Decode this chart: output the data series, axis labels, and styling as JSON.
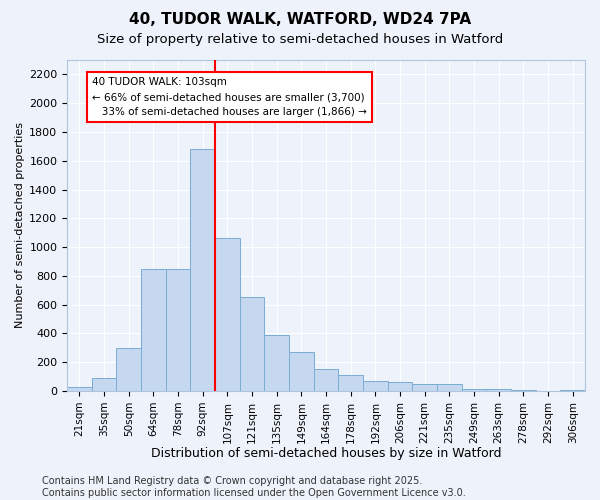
{
  "title1": "40, TUDOR WALK, WATFORD, WD24 7PA",
  "title2": "Size of property relative to semi-detached houses in Watford",
  "xlabel": "Distribution of semi-detached houses by size in Watford",
  "ylabel": "Number of semi-detached properties",
  "categories": [
    "21sqm",
    "35sqm",
    "50sqm",
    "64sqm",
    "78sqm",
    "92sqm",
    "107sqm",
    "121sqm",
    "135sqm",
    "149sqm",
    "164sqm",
    "178sqm",
    "192sqm",
    "206sqm",
    "221sqm",
    "235sqm",
    "249sqm",
    "263sqm",
    "278sqm",
    "292sqm",
    "306sqm"
  ],
  "values": [
    30,
    90,
    300,
    850,
    850,
    1680,
    1060,
    650,
    390,
    270,
    150,
    110,
    70,
    60,
    50,
    50,
    15,
    12,
    10,
    2,
    10
  ],
  "bar_color": "#c5d8f0",
  "bar_edge_color": "#7aadd4",
  "vline_x_index": 6,
  "vline_color": "red",
  "annotation_text": "40 TUDOR WALK: 103sqm\n← 66% of semi-detached houses are smaller (3,700)\n   33% of semi-detached houses are larger (1,866) →",
  "annotation_box_color": "white",
  "annotation_box_edge": "red",
  "ylim": [
    0,
    2300
  ],
  "yticks": [
    0,
    200,
    400,
    600,
    800,
    1000,
    1200,
    1400,
    1600,
    1800,
    2000,
    2200
  ],
  "footer": "Contains HM Land Registry data © Crown copyright and database right 2025.\nContains public sector information licensed under the Open Government Licence v3.0.",
  "bg_color": "#eef3fb",
  "plot_bg_color": "#eef3fb",
  "grid_color": "white",
  "title1_fontsize": 11,
  "title2_fontsize": 9.5,
  "xlabel_fontsize": 9,
  "ylabel_fontsize": 8,
  "footer_fontsize": 7
}
